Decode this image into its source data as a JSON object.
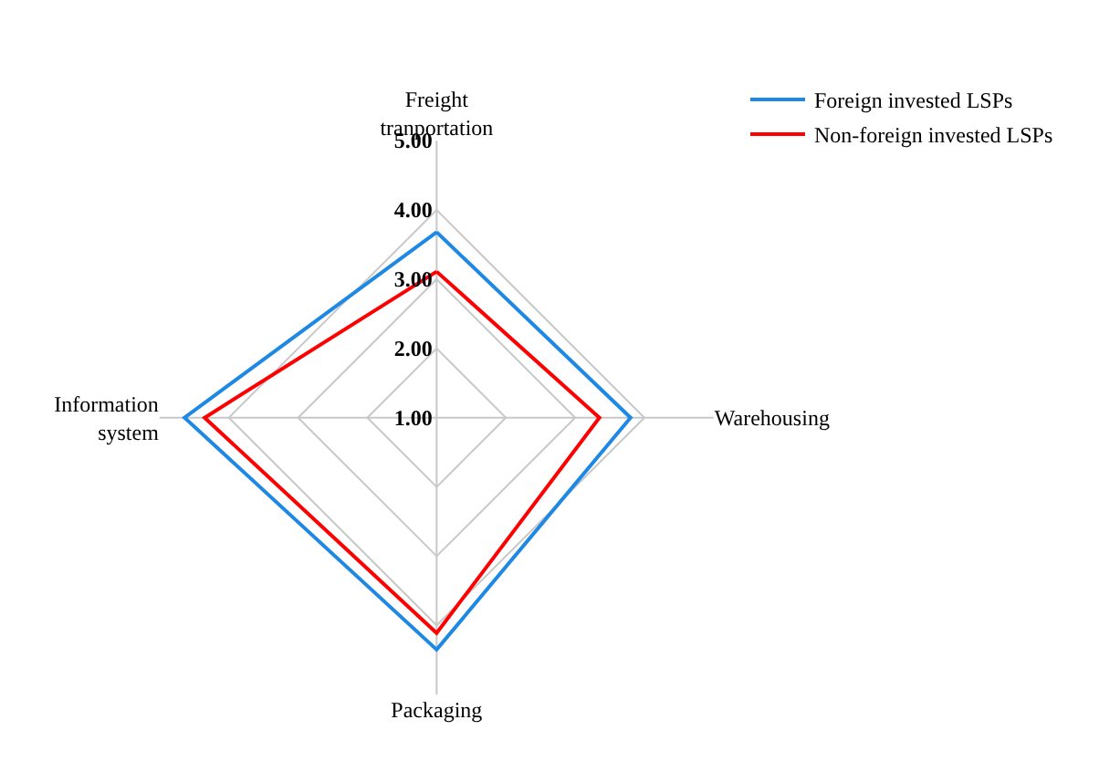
{
  "chart_data": {
    "type": "radar",
    "categories": [
      "Freight\ntranportation",
      "Warehousing",
      "Packaging",
      "Information\nsystem"
    ],
    "series": [
      {
        "name": "Foreign invested LSPs",
        "color": "#1e88e5",
        "values": [
          3.68,
          3.8,
          4.35,
          4.64
        ]
      },
      {
        "name": "Non-foreign invested LSPs",
        "color": "#ff0000",
        "values": [
          3.11,
          3.35,
          4.11,
          4.35
        ]
      }
    ],
    "ylim": [
      1,
      5
    ],
    "yticks": [
      {
        "value": 1,
        "label": "1.00"
      },
      {
        "value": 2,
        "label": "2.00"
      },
      {
        "value": 3,
        "label": "3.00"
      },
      {
        "value": 4,
        "label": "4.00"
      },
      {
        "value": 5,
        "label": "5.00"
      }
    ],
    "grid": true,
    "legend": "top right",
    "marker": "none"
  }
}
